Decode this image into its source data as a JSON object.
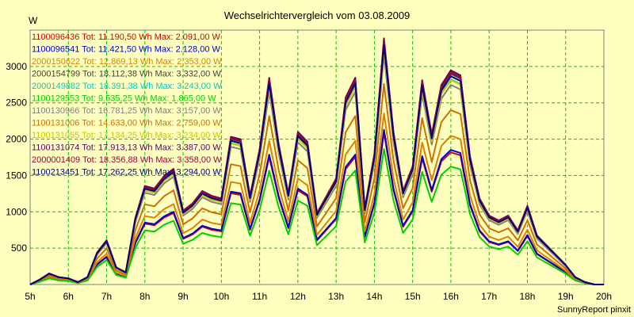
{
  "chart_data": {
    "type": "line",
    "title": "Wechselrichtervergleich vom 03.08.2009",
    "ylabel": "W",
    "xlabel": "",
    "ylim": [
      0,
      3500
    ],
    "xlim": [
      5,
      20
    ],
    "grid": true,
    "legend_position": "top-left",
    "y_ticks": [
      "500",
      "1000",
      "1500",
      "2000",
      "2500",
      "3000"
    ],
    "x_ticks": [
      "5h",
      "6h",
      "7h",
      "8h",
      "9h",
      "10h",
      "11h",
      "12h",
      "13h",
      "14h",
      "15h",
      "16h",
      "17h",
      "18h",
      "19h",
      "20h"
    ],
    "x": [
      5.0,
      5.25,
      5.5,
      5.75,
      6.0,
      6.25,
      6.5,
      6.75,
      7.0,
      7.25,
      7.5,
      7.75,
      8.0,
      8.25,
      8.5,
      8.75,
      9.0,
      9.25,
      9.5,
      9.75,
      10.0,
      10.25,
      10.5,
      10.75,
      11.0,
      11.25,
      11.5,
      11.75,
      12.0,
      12.25,
      12.5,
      12.75,
      13.0,
      13.25,
      13.5,
      13.75,
      14.0,
      14.25,
      14.5,
      14.75,
      15.0,
      15.25,
      15.5,
      15.75,
      16.0,
      16.25,
      16.5,
      16.75,
      17.0,
      17.25,
      17.5,
      17.75,
      18.0,
      18.25,
      18.5,
      18.75,
      19.0,
      19.25,
      19.5,
      19.75,
      20.0
    ],
    "shape": [
      0.0,
      0.02,
      0.045,
      0.03,
      0.025,
      0.01,
      0.03,
      0.13,
      0.18,
      0.07,
      0.05,
      0.27,
      0.4,
      0.39,
      0.44,
      0.47,
      0.3,
      0.33,
      0.38,
      0.36,
      0.35,
      0.6,
      0.59,
      0.36,
      0.55,
      0.84,
      0.57,
      0.37,
      0.62,
      0.58,
      0.29,
      0.36,
      0.43,
      0.76,
      0.84,
      0.31,
      0.53,
      1.0,
      0.62,
      0.38,
      0.48,
      0.83,
      0.61,
      0.81,
      0.87,
      0.85,
      0.52,
      0.35,
      0.28,
      0.26,
      0.28,
      0.22,
      0.32,
      0.2,
      0.16,
      0.12,
      0.08,
      0.03,
      0.01,
      0.0,
      0.0
    ],
    "series": [
      {
        "name": "1100096436",
        "legend": "1100096436 Tot: 11.190,50 Wh Max: 2.091,00 W",
        "color": "#d00000",
        "max": 2091
      },
      {
        "name": "1100096541",
        "legend": "1100096541 Tot: 11.421,50 Wh Max: 2.128,00 W",
        "color": "#0000d0",
        "max": 2128
      },
      {
        "name": "2000150622",
        "legend": "2000150622 Tot: 12.869,13 Wh Max: 2.353,00 W",
        "color": "#e08000",
        "max": 2353
      },
      {
        "name": "2000154799",
        "legend": "2000154799 Tot: 18.112,38 Wh Max: 3.332,00 W",
        "color": "#404040",
        "max": 3332
      },
      {
        "name": "2000149882",
        "legend": "2000149882 Tot: 18.391,38 Wh Max: 3.243,00 W",
        "color": "#00c8c8",
        "max": 3243
      },
      {
        "name": "1100129553",
        "legend": "1100129553 Tot: 9.535,25 Wh Max: 1.865,00 W",
        "color": "#00d000",
        "max": 1865
      },
      {
        "name": "1100130966",
        "legend": "1100130966 Tot: 16.781,25 Wh Max: 3.157,00 W",
        "color": "#808080",
        "max": 3157
      },
      {
        "name": "1100131006",
        "legend": "1100131006 Tot: 14.633,00 Wh Max: 2.759,00 W",
        "color": "#d07000",
        "max": 2759
      },
      {
        "name": "1100131055",
        "legend": "1100131055 Tot: 17.134,25 Wh Max: 3.234,00 W",
        "color": "#c8c800",
        "max": 3234
      },
      {
        "name": "1100131074",
        "legend": "1100131074 Tot: 17.913,13 Wh Max: 3.387,00 W",
        "color": "#5a005a",
        "max": 3387
      },
      {
        "name": "2000001409",
        "legend": "2000001409 Tot: 18.356,88 Wh Max: 3.358,00 W",
        "color": "#a00040",
        "max": 3358
      },
      {
        "name": "1100213451",
        "legend": "1100213451 Tot: 17.262,25 Wh Max: 3.294,00 W",
        "color": "#000080",
        "max": 3294
      }
    ]
  },
  "footer": "SunnyReport pinxit"
}
